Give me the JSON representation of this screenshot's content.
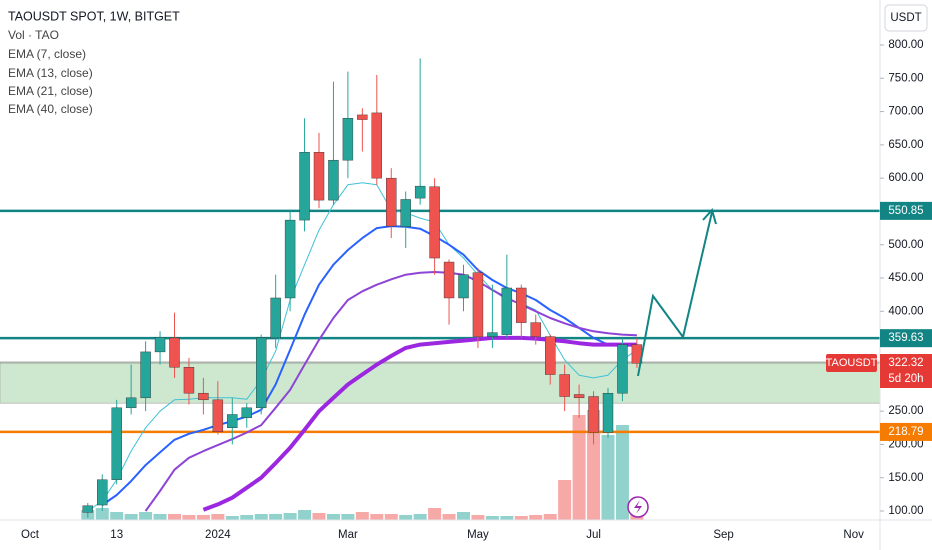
{
  "chart_data": {
    "type": "candlestick",
    "title": "TAOUSDT SPOT, 1W, BITGET",
    "volume_name": "Vol · TAO",
    "axis_unit": "USDT",
    "categories": [
      "Oct",
      null,
      null,
      null,
      null,
      null,
      "13",
      null,
      null,
      null,
      null,
      null,
      null,
      "2024",
      null,
      null,
      null,
      null,
      null,
      null,
      null,
      null,
      "Mar",
      null,
      null,
      null,
      null,
      null,
      null,
      null,
      null,
      "May",
      null,
      null,
      null,
      null,
      null,
      null,
      null,
      "Jul",
      null,
      null,
      null,
      null,
      null,
      null,
      null,
      null,
      "Sep",
      null,
      null,
      null,
      null,
      null,
      null,
      null,
      null,
      "Nov",
      null,
      null
    ],
    "open": [
      null,
      null,
      null,
      null,
      98,
      109,
      147,
      255,
      270,
      339,
      360,
      316,
      277,
      267,
      225,
      240,
      255,
      360,
      420,
      537,
      639,
      567,
      627,
      695,
      698,
      600,
      527,
      570,
      587,
      474,
      420,
      458,
      362,
      365,
      435,
      383,
      362,
      305,
      275,
      272,
      218,
      277,
      350,
      null,
      null,
      null,
      null,
      null,
      null,
      null,
      null,
      null,
      null,
      null,
      null,
      null,
      null,
      null,
      null,
      null
    ],
    "high": [
      null,
      null,
      null,
      null,
      112,
      155,
      267,
      320,
      355,
      370,
      398,
      330,
      300,
      295,
      270,
      262,
      365,
      455,
      550,
      690,
      668,
      745,
      760,
      705,
      755,
      615,
      580,
      780,
      600,
      478,
      470,
      465,
      440,
      485,
      440,
      395,
      365,
      320,
      290,
      280,
      285,
      360,
      360,
      null,
      null,
      null,
      null,
      null,
      null,
      null,
      null,
      null,
      null,
      null,
      null,
      null,
      null,
      null,
      null,
      null
    ],
    "low": [
      null,
      null,
      null,
      null,
      90,
      100,
      140,
      245,
      250,
      320,
      300,
      260,
      245,
      215,
      200,
      225,
      245,
      345,
      400,
      520,
      555,
      560,
      600,
      640,
      590,
      510,
      495,
      560,
      455,
      380,
      400,
      345,
      345,
      360,
      360,
      350,
      290,
      250,
      240,
      200,
      210,
      265,
      315,
      null,
      null,
      null,
      null,
      null,
      null,
      null,
      null,
      null,
      null,
      null,
      null,
      null,
      null,
      null,
      null,
      null
    ],
    "close": [
      null,
      null,
      null,
      null,
      108,
      147,
      255,
      270,
      339,
      361,
      316,
      277,
      267,
      219,
      245,
      255,
      360,
      420,
      537,
      639,
      567,
      627,
      690,
      688,
      600,
      528,
      568,
      588,
      480,
      420,
      455,
      362,
      368,
      435,
      383,
      362,
      305,
      272,
      270,
      218,
      277,
      350,
      322,
      null,
      null,
      null,
      null,
      null,
      null,
      null,
      null,
      null,
      null,
      null,
      null,
      null,
      null,
      null,
      null,
      null
    ],
    "volume": [
      null,
      null,
      null,
      null,
      10,
      12,
      8,
      6,
      8,
      6,
      6,
      5,
      5,
      6,
      4,
      5,
      6,
      6,
      7,
      10,
      7,
      6,
      6,
      8,
      6,
      6,
      5,
      6,
      12,
      6,
      8,
      5,
      4,
      4,
      4,
      5,
      6,
      40,
      105,
      110,
      85,
      95,
      10,
      null,
      null,
      null,
      null,
      null,
      null,
      null,
      null,
      null,
      null,
      null,
      null,
      null,
      null,
      null,
      null,
      null
    ],
    "up_color": "#26a69a",
    "down_color": "#ef5350",
    "series": [
      {
        "name": "EMA (7, close)",
        "color": "#3fc1d6",
        "width": 1,
        "values": [
          null,
          null,
          null,
          null,
          100,
          115,
          147,
          190,
          225,
          250,
          267,
          268,
          270,
          270,
          270,
          268,
          297,
          340,
          417,
          470,
          522,
          560,
          590,
          593,
          590,
          552,
          548,
          540,
          534,
          500,
          480,
          455,
          432,
          417,
          412,
          402,
          364,
          327,
          304,
          300,
          304,
          327,
          342,
          null,
          null,
          null,
          null,
          null,
          null,
          null,
          null,
          null,
          null,
          null,
          null,
          null,
          null,
          null,
          null,
          null
        ]
      },
      {
        "name": "EMA (13, close)",
        "color": "#2962ff",
        "width": 2,
        "values": [
          null,
          null,
          null,
          null,
          null,
          109,
          124,
          145,
          169,
          188,
          207,
          216,
          222,
          229,
          235,
          242,
          252,
          290,
          342,
          395,
          440,
          470,
          492,
          510,
          525,
          528,
          527,
          524,
          513,
          500,
          485,
          462,
          447,
          435,
          427,
          417,
          402,
          390,
          375,
          360,
          350,
          348,
          350,
          null,
          null,
          null,
          null,
          null,
          null,
          null,
          null,
          null,
          null,
          null,
          null,
          null,
          null,
          null,
          null,
          null
        ]
      },
      {
        "name": "EMA (21, close)",
        "color": "#8e44d6",
        "width": 2,
        "values": [
          null,
          null,
          null,
          null,
          null,
          null,
          null,
          null,
          100,
          130,
          162,
          180,
          190,
          199,
          208,
          218,
          229,
          255,
          282,
          320,
          357,
          390,
          417,
          430,
          440,
          448,
          455,
          458,
          459,
          458,
          455,
          445,
          432,
          420,
          410,
          400,
          390,
          382,
          375,
          370,
          367,
          365,
          364,
          null,
          null,
          null,
          null,
          null,
          null,
          null,
          null,
          null,
          null,
          null,
          null,
          null,
          null,
          null,
          null,
          null
        ]
      },
      {
        "name": "EMA (40, close)",
        "color": "#9c27e0",
        "width": 4,
        "values": [
          null,
          null,
          null,
          null,
          null,
          null,
          null,
          null,
          null,
          null,
          null,
          null,
          102,
          110,
          120,
          135,
          150,
          172,
          195,
          222,
          250,
          270,
          290,
          305,
          320,
          333,
          345,
          350,
          352,
          354,
          356,
          358,
          360,
          360,
          360,
          359,
          357,
          355,
          352,
          350,
          350,
          350,
          350,
          null,
          null,
          null,
          null,
          null,
          null,
          null,
          null,
          null,
          null,
          null,
          null,
          null,
          null,
          null,
          null,
          null
        ]
      }
    ],
    "ylim": [
      86.5,
      867.6
    ],
    "yticks": [
      {
        "value": 100,
        "label": "100.00"
      },
      {
        "value": 150,
        "label": "150.00"
      },
      {
        "value": 200,
        "label": "200.00"
      },
      {
        "value": 250,
        "label": "250.00"
      },
      {
        "value": 400,
        "label": "400.00"
      },
      {
        "value": 450,
        "label": "450.00"
      },
      {
        "value": 500,
        "label": "500.00"
      },
      {
        "value": 600,
        "label": "600.00"
      },
      {
        "value": 650,
        "label": "650.00"
      },
      {
        "value": 700,
        "label": "700.00"
      },
      {
        "value": 750,
        "label": "750.00"
      },
      {
        "value": 800,
        "label": "800.00"
      }
    ],
    "zone": [
      262,
      324
    ],
    "zone_color": "#a5d6a7",
    "levels": [
      {
        "value": 550.85,
        "color": "#138484"
      },
      {
        "value": 359.63,
        "color": "#138484"
      },
      {
        "value": 218.79,
        "color": "#f57c00"
      }
    ],
    "last": {
      "symbol": "TAOUSDT",
      "value": 322.32,
      "countdown": "5d 20h",
      "color": "#e53935"
    }
  }
}
